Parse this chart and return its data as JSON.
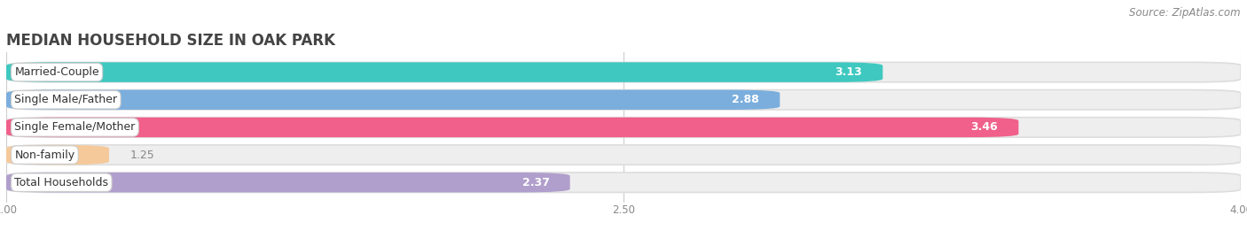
{
  "title": "MEDIAN HOUSEHOLD SIZE IN OAK PARK",
  "source": "Source: ZipAtlas.com",
  "categories": [
    "Married-Couple",
    "Single Male/Father",
    "Single Female/Mother",
    "Non-family",
    "Total Households"
  ],
  "values": [
    3.13,
    2.88,
    3.46,
    1.25,
    2.37
  ],
  "bar_colors": [
    "#3ec8c0",
    "#7baedd",
    "#f0608a",
    "#f5c99a",
    "#b09fcc"
  ],
  "xlim": [
    1.0,
    4.0
  ],
  "xticks": [
    1.0,
    2.5,
    4.0
  ],
  "background_color": "#ffffff",
  "bar_bg_color": "#eeeeee",
  "bar_bg_shadow": "#e0e0e0",
  "title_fontsize": 12,
  "label_fontsize": 9,
  "value_fontsize": 9,
  "source_fontsize": 8.5,
  "bar_height": 0.72,
  "bar_gap": 0.28
}
